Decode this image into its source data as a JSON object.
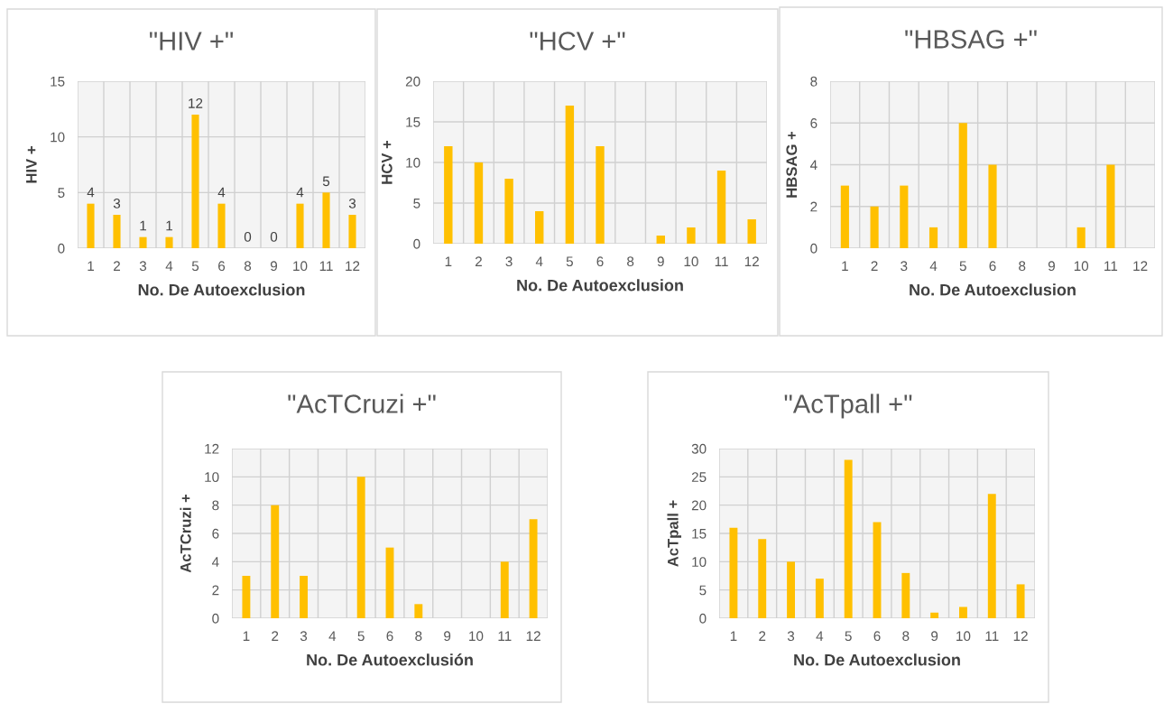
{
  "chart_data": [
    {
      "type": "bar",
      "title": "\"HIV +\"",
      "xlabel": "No. De Autoexclusion",
      "ylabel": "HIV +",
      "categories": [
        "1",
        "2",
        "3",
        "4",
        "5",
        "6",
        "8",
        "9",
        "10",
        "11",
        "12"
      ],
      "values": [
        4,
        3,
        1,
        1,
        12,
        4,
        0,
        0,
        4,
        5,
        3
      ],
      "color": "#ffc000",
      "ylim": [
        0,
        15
      ],
      "yticks": [
        0,
        5,
        10,
        15
      ],
      "grid": true,
      "data_labels": true
    },
    {
      "type": "bar",
      "title": "\"HCV +\"",
      "xlabel": "No. De Autoexclusion",
      "ylabel": "HCV +",
      "categories": [
        "1",
        "2",
        "3",
        "4",
        "5",
        "6",
        "8",
        "9",
        "10",
        "11",
        "12"
      ],
      "values": [
        12,
        10,
        8,
        4,
        17,
        12,
        0,
        1,
        2,
        9,
        3
      ],
      "color": "#ffc000",
      "ylim": [
        0,
        20
      ],
      "yticks": [
        0,
        5,
        10,
        15,
        20
      ],
      "grid": true
    },
    {
      "type": "bar",
      "title": "\"HBSAG +\"",
      "xlabel": "No. De Autoexclusion",
      "ylabel": "HBSAG +",
      "categories": [
        "1",
        "2",
        "3",
        "4",
        "5",
        "6",
        "8",
        "9",
        "10",
        "11",
        "12"
      ],
      "values": [
        3,
        2,
        3,
        1,
        6,
        4,
        0,
        0,
        1,
        4,
        0
      ],
      "color": "#ffc000",
      "ylim": [
        0,
        8
      ],
      "yticks": [
        0,
        2,
        4,
        6,
        8
      ],
      "grid": true
    },
    {
      "type": "bar",
      "title": "\"AcTCruzi +\"",
      "xlabel": "No. De Autoexclusión",
      "ylabel": "AcTCruzi +",
      "categories": [
        "1",
        "2",
        "3",
        "4",
        "5",
        "6",
        "8",
        "9",
        "10",
        "11",
        "12"
      ],
      "values": [
        3,
        8,
        3,
        0,
        10,
        5,
        1,
        0,
        0,
        4,
        7
      ],
      "color": "#ffc000",
      "ylim": [
        0,
        12
      ],
      "yticks": [
        0,
        2,
        4,
        6,
        8,
        10,
        12
      ],
      "grid": true
    },
    {
      "type": "bar",
      "title": "\"AcTpall +\"",
      "xlabel": "No. De Autoexclusion",
      "ylabel": "AcTpall +",
      "categories": [
        "1",
        "2",
        "3",
        "4",
        "5",
        "6",
        "8",
        "9",
        "10",
        "11",
        "12"
      ],
      "values": [
        16,
        14,
        10,
        7,
        28,
        17,
        8,
        1,
        2,
        22,
        6
      ],
      "color": "#ffc000",
      "ylim": [
        0,
        30
      ],
      "yticks": [
        0,
        5,
        10,
        15,
        20,
        25,
        30
      ],
      "grid": true
    }
  ]
}
